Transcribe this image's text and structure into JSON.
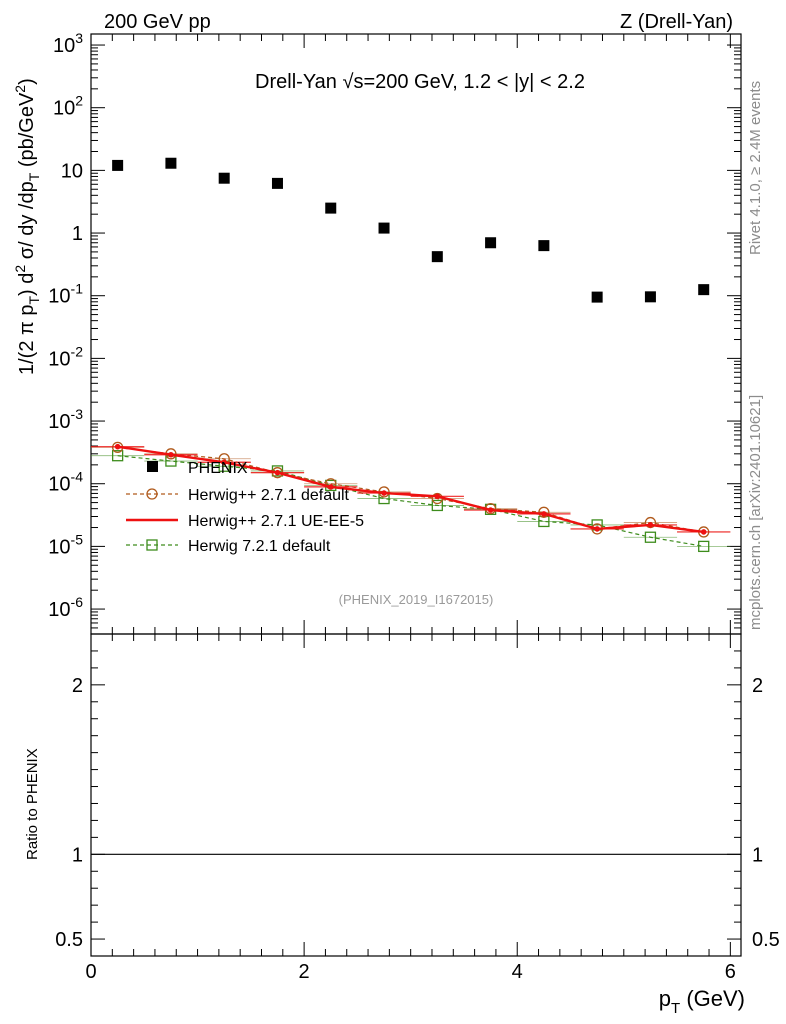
{
  "header": {
    "left": "200 GeV pp",
    "right": "Z (Drell-Yan)"
  },
  "side_labels": {
    "rivet": "Rivet 4.1.0, ≥ 2.4M events",
    "mcplots": "mcplots.cern.ch [arXiv:2401.10621]"
  },
  "plot_title": "Drell-Yan √s=200 GeV,  1.2 < |y| < 2.2",
  "analysis_ref": "(PHENIX_2019_I1672015)",
  "axis_titles": {
    "y_main": "1/(2 π pT) d² σ/ dy /dpT (pb/GeV²)",
    "y_ratio": "Ratio to PHENIX",
    "x": "pT (GeV)"
  },
  "legend": {
    "phenix": "PHENIX",
    "herwigpp_default": "Herwig++ 2.7.1 default",
    "herwigpp_ueee5": "Herwig++ 2.7.1 UE-EE-5",
    "herwig7_default": "Herwig 7.2.1 default"
  },
  "colors": {
    "phenix": "#000000",
    "herwigpp_default": "#b05a1c",
    "herwigpp_ueee5": "#ee1111",
    "herwig7_default": "#3d8c1c"
  },
  "chart_data": [
    {
      "type": "scatter",
      "panel": "main",
      "yscale": "log",
      "xlim": [
        0,
        6.1
      ],
      "ylim": [
        4e-07,
        1500
      ],
      "x_ticks": [
        "0",
        "2",
        "4",
        "6"
      ],
      "y_ticks": [
        "10^-6",
        "10^-5",
        "10^-4",
        "10^-3",
        "10^-2",
        "10^-1",
        "1",
        "10",
        "10^2",
        "10^3"
      ],
      "x": [
        0.25,
        0.75,
        1.25,
        1.75,
        2.25,
        2.75,
        3.25,
        3.75,
        4.25,
        4.75,
        5.25,
        5.75
      ],
      "series": [
        {
          "name": "PHENIX",
          "style": "square-filled",
          "values": [
            12,
            13,
            7.5,
            6.2,
            2.5,
            1.2,
            0.42,
            0.7,
            0.63,
            0.095,
            0.096,
            0.125
          ]
        },
        {
          "name": "Herwig++ 2.7.1 default",
          "style": "circle-open-dashed",
          "values": [
            0.00038,
            0.0003,
            0.00025,
            0.00015,
            0.0001,
            7.4e-05,
            5.8e-05,
            4e-05,
            3.5e-05,
            1.9e-05,
            2.4e-05,
            1.7e-05
          ]
        },
        {
          "name": "Herwig++ 2.7.1 UE-EE-5",
          "style": "line-solid",
          "values": [
            0.00039,
            0.00029,
            0.00022,
            0.00015,
            8.9e-05,
            7.1e-05,
            6.3e-05,
            3.8e-05,
            3.3e-05,
            1.9e-05,
            2.2e-05,
            1.7e-05
          ]
        },
        {
          "name": "Herwig 7.2.1 default",
          "style": "square-open-dashed",
          "values": [
            0.00028,
            0.00023,
            0.00019,
            0.00016,
            9.4e-05,
            5.8e-05,
            4.5e-05,
            3.9e-05,
            2.5e-05,
            2.2e-05,
            1.4e-05,
            1e-05
          ]
        }
      ]
    },
    {
      "type": "line",
      "panel": "ratio",
      "xlim": [
        0,
        6.1
      ],
      "ylim": [
        0.4,
        2.3
      ],
      "y_ticks": [
        "0.5",
        "1",
        "2"
      ],
      "x_ticks": [
        "0",
        "2",
        "4",
        "6"
      ],
      "reference_line": 1
    }
  ]
}
